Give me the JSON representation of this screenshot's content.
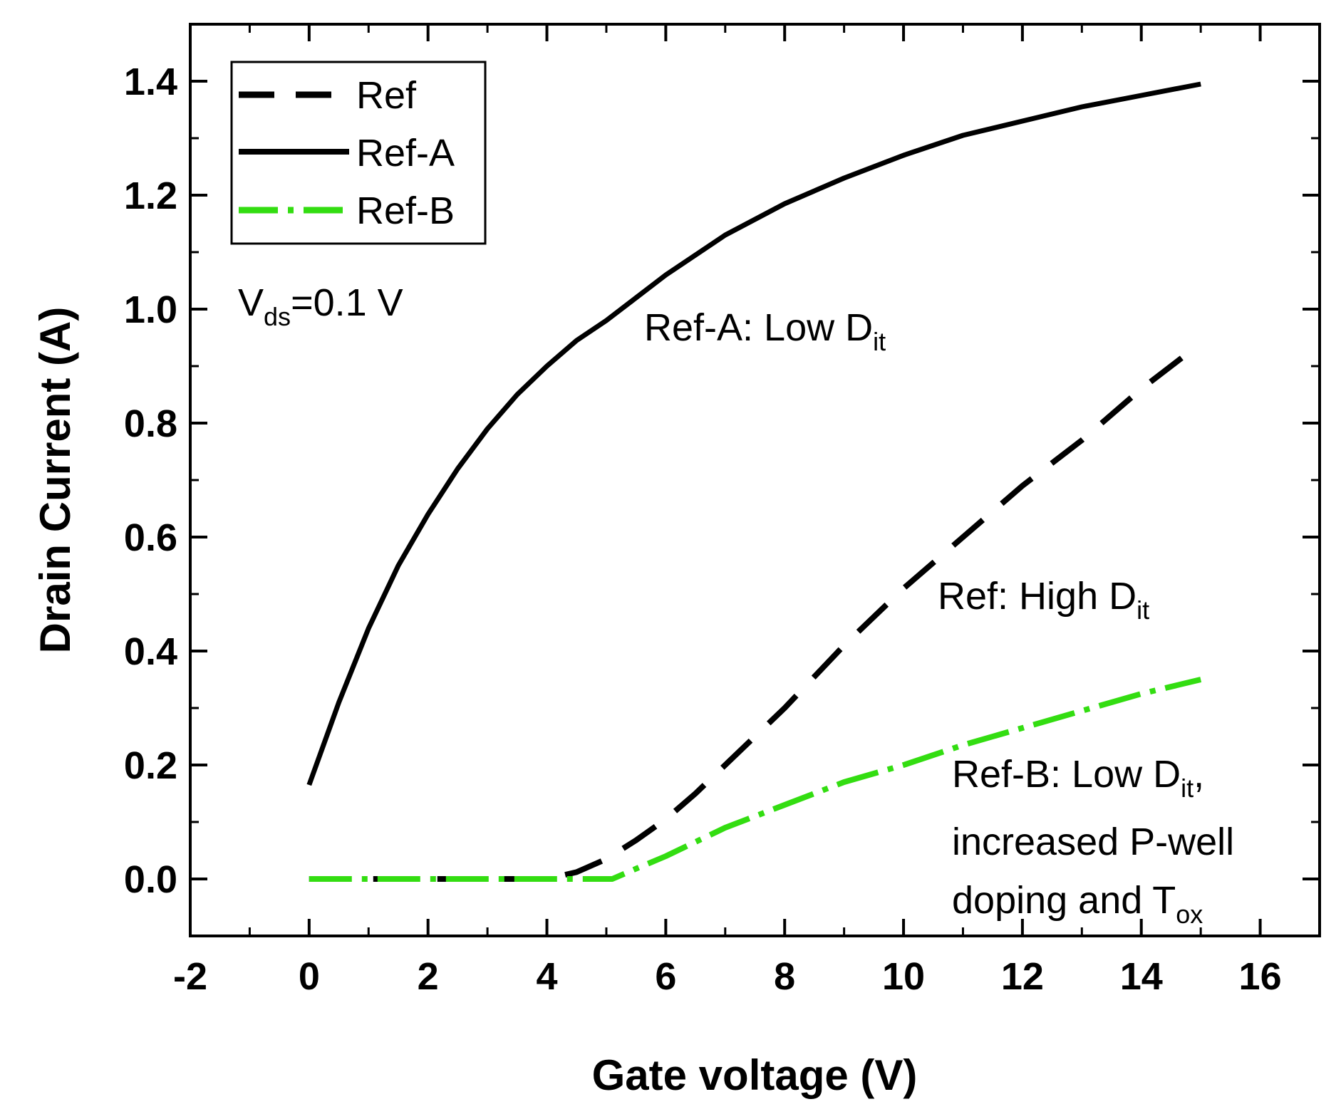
{
  "chart_data": {
    "type": "line",
    "title": "",
    "xlabel": "Gate voltage (V)",
    "ylabel": "Drain Current (A)",
    "xlim": [
      -2,
      17
    ],
    "ylim": [
      -0.1,
      1.5
    ],
    "x_ticks": [
      -2,
      0,
      2,
      4,
      6,
      8,
      10,
      12,
      14,
      16
    ],
    "y_ticks": [
      0.0,
      0.2,
      0.4,
      0.6,
      0.8,
      1.0,
      1.2,
      1.4
    ],
    "x_tick_labels": [
      "-2",
      "0",
      "2",
      "4",
      "6",
      "8",
      "10",
      "12",
      "14",
      "16"
    ],
    "y_tick_labels": [
      "0.0",
      "0.2",
      "0.4",
      "0.6",
      "0.8",
      "1.0",
      "1.2",
      "1.4"
    ],
    "legend_position": "top-left",
    "series": [
      {
        "name": "Ref",
        "style": "dashed",
        "color": "#000000",
        "x": [
          0,
          1,
          2,
          3,
          4,
          4.5,
          5,
          5.5,
          6,
          6.5,
          7,
          7.5,
          8,
          9,
          10,
          11,
          12,
          13,
          14,
          15
        ],
        "y": [
          0,
          0,
          0,
          0,
          0,
          0.012,
          0.035,
          0.068,
          0.105,
          0.15,
          0.2,
          0.25,
          0.3,
          0.41,
          0.51,
          0.6,
          0.69,
          0.77,
          0.86,
          0.94
        ]
      },
      {
        "name": "Ref-A",
        "style": "solid",
        "color": "#000000",
        "x": [
          0,
          0.5,
          1,
          1.5,
          2,
          2.5,
          3,
          3.5,
          4,
          4.5,
          5,
          6,
          7,
          8,
          9,
          10,
          11,
          12,
          13,
          14,
          15
        ],
        "y": [
          0.165,
          0.31,
          0.44,
          0.55,
          0.64,
          0.72,
          0.79,
          0.85,
          0.9,
          0.945,
          0.98,
          1.06,
          1.13,
          1.185,
          1.23,
          1.27,
          1.305,
          1.33,
          1.355,
          1.375,
          1.395
        ]
      },
      {
        "name": "Ref-B",
        "style": "dash-dot",
        "color": "#33dd11",
        "x": [
          0,
          1,
          2,
          3,
          4,
          5.1,
          5.5,
          6,
          7,
          8,
          9,
          10,
          11,
          12,
          13,
          14,
          15
        ],
        "y": [
          0,
          0,
          0,
          0,
          0,
          0,
          0.018,
          0.04,
          0.09,
          0.13,
          0.17,
          0.2,
          0.235,
          0.265,
          0.295,
          0.325,
          0.35
        ]
      }
    ],
    "annotations": {
      "vds": {
        "main": "V",
        "sub": "ds",
        "rest": "=0.1 V"
      },
      "ref_a": {
        "main": "Ref-A: Low D",
        "sub": "it"
      },
      "ref": {
        "main": "Ref: High D",
        "sub": "it"
      },
      "ref_b_line1": {
        "main": "Ref-B: Low D",
        "sub": "it",
        "rest": ","
      },
      "ref_b_line2": "increased P-well",
      "ref_b_line3": {
        "main": "doping and T",
        "sub": "ox"
      }
    }
  }
}
